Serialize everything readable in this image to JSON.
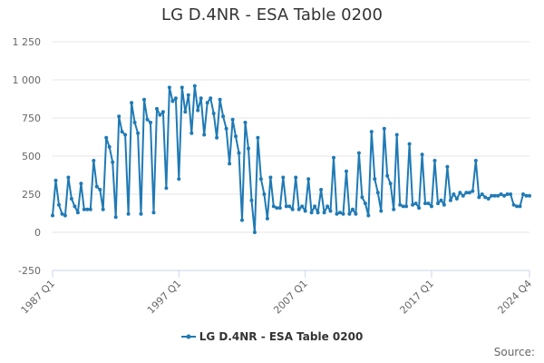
{
  "title": "LG D.4NR - ESA Table 0200",
  "source_label": "Source:",
  "legend": {
    "label": "LG D.4NR - ESA Table 0200"
  },
  "colors": {
    "series": "#1f7ab5",
    "grid": "#e6e6e6",
    "axis": "#ccd6eb",
    "text": "#666666"
  },
  "chart_data": {
    "type": "line",
    "title": "LG D.4NR - ESA Table 0200",
    "xlabel": "",
    "ylabel": "",
    "x_start": "1987 Q1",
    "x_end": "2024 Q4",
    "x_ticks": [
      "1987 Q1",
      "1997 Q1",
      "2007 Q1",
      "2017 Q1",
      "2024 Q4"
    ],
    "y_ticks": [
      -250,
      0,
      250,
      500,
      750,
      1000,
      1250
    ],
    "y_tick_labels": [
      "-250",
      "0",
      "250",
      "500",
      "750",
      "1 000",
      "1 250"
    ],
    "ylim": [
      -250,
      1250
    ],
    "grid": true,
    "legend_position": "bottom",
    "series": [
      {
        "name": "LG D.4NR - ESA Table 0200",
        "values": [
          110,
          340,
          180,
          120,
          110,
          360,
          220,
          170,
          130,
          320,
          150,
          150,
          150,
          470,
          300,
          280,
          150,
          620,
          560,
          460,
          100,
          760,
          660,
          640,
          120,
          850,
          720,
          650,
          120,
          870,
          740,
          720,
          130,
          810,
          770,
          790,
          290,
          950,
          860,
          880,
          350,
          950,
          790,
          900,
          650,
          960,
          800,
          880,
          640,
          850,
          880,
          780,
          620,
          870,
          760,
          680,
          450,
          740,
          630,
          520,
          80,
          720,
          550,
          210,
          0,
          620,
          350,
          250,
          90,
          360,
          170,
          160,
          160,
          360,
          170,
          170,
          150,
          360,
          150,
          170,
          140,
          350,
          130,
          170,
          130,
          280,
          130,
          170,
          140,
          490,
          120,
          130,
          120,
          400,
          120,
          150,
          120,
          520,
          230,
          190,
          110,
          660,
          350,
          260,
          140,
          680,
          370,
          320,
          150,
          640,
          180,
          170,
          170,
          580,
          180,
          190,
          160,
          510,
          190,
          190,
          170,
          470,
          190,
          210,
          180,
          430,
          210,
          250,
          220,
          260,
          240,
          260,
          260,
          270,
          470,
          230,
          250,
          230,
          220,
          240,
          240,
          240,
          250,
          240,
          250,
          250,
          180,
          170,
          170,
          250,
          240,
          240
        ]
      }
    ]
  }
}
